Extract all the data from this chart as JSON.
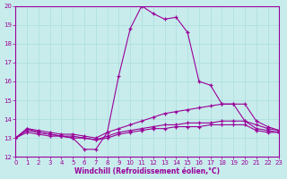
{
  "xlabel": "Windchill (Refroidissement éolien,°C)",
  "xlim": [
    0,
    23
  ],
  "ylim": [
    12,
    20
  ],
  "yticks": [
    12,
    13,
    14,
    15,
    16,
    17,
    18,
    19,
    20
  ],
  "xticks": [
    0,
    1,
    2,
    3,
    4,
    5,
    6,
    7,
    8,
    9,
    10,
    11,
    12,
    13,
    14,
    15,
    16,
    17,
    18,
    19,
    20,
    21,
    22,
    23
  ],
  "bg_color": "#c8ecec",
  "line_color": "#990099",
  "grid_color": "#aadddd",
  "curves": [
    {
      "comment": "main spike curve - temperature that peaks at 20",
      "x": [
        0,
        1,
        2,
        3,
        4,
        5,
        6,
        7,
        8,
        9,
        10,
        11,
        12,
        13,
        14,
        15,
        16,
        17,
        18,
        19,
        20,
        21,
        22,
        23
      ],
      "y": [
        13,
        13.5,
        13.3,
        13.2,
        13.1,
        13.0,
        12.4,
        12.4,
        13.3,
        16.3,
        18.8,
        20.0,
        19.6,
        19.3,
        19.4,
        18.6,
        16.0,
        15.8,
        14.8,
        14.8,
        13.9,
        13.7,
        13.5,
        13.4
      ]
    },
    {
      "comment": "flat-ish curve slightly higher - peaks around 14.8",
      "x": [
        0,
        1,
        2,
        3,
        4,
        5,
        6,
        7,
        8,
        9,
        10,
        11,
        12,
        13,
        14,
        15,
        16,
        17,
        18,
        19,
        20,
        21,
        22,
        23
      ],
      "y": [
        13,
        13.5,
        13.4,
        13.3,
        13.2,
        13.2,
        13.1,
        13.0,
        13.3,
        13.5,
        13.7,
        13.9,
        14.1,
        14.3,
        14.4,
        14.5,
        14.6,
        14.7,
        14.8,
        14.8,
        14.8,
        13.9,
        13.6,
        13.4
      ]
    },
    {
      "comment": "flat curve - nearly horizontal around 13-13.5",
      "x": [
        0,
        1,
        2,
        3,
        4,
        5,
        6,
        7,
        8,
        9,
        10,
        11,
        12,
        13,
        14,
        15,
        16,
        17,
        18,
        19,
        20,
        21,
        22,
        23
      ],
      "y": [
        13,
        13.4,
        13.3,
        13.2,
        13.1,
        13.1,
        13.0,
        12.9,
        13.1,
        13.3,
        13.4,
        13.5,
        13.6,
        13.7,
        13.7,
        13.8,
        13.8,
        13.8,
        13.9,
        13.9,
        13.9,
        13.5,
        13.4,
        13.3
      ]
    },
    {
      "comment": "lower flat curve - stays around 13",
      "x": [
        0,
        1,
        2,
        3,
        4,
        5,
        6,
        7,
        8,
        9,
        10,
        11,
        12,
        13,
        14,
        15,
        16,
        17,
        18,
        19,
        20,
        21,
        22,
        23
      ],
      "y": [
        13,
        13.3,
        13.2,
        13.1,
        13.1,
        13.0,
        13.0,
        12.9,
        13.0,
        13.2,
        13.3,
        13.4,
        13.5,
        13.5,
        13.6,
        13.6,
        13.6,
        13.7,
        13.7,
        13.7,
        13.7,
        13.4,
        13.3,
        13.3
      ]
    }
  ]
}
